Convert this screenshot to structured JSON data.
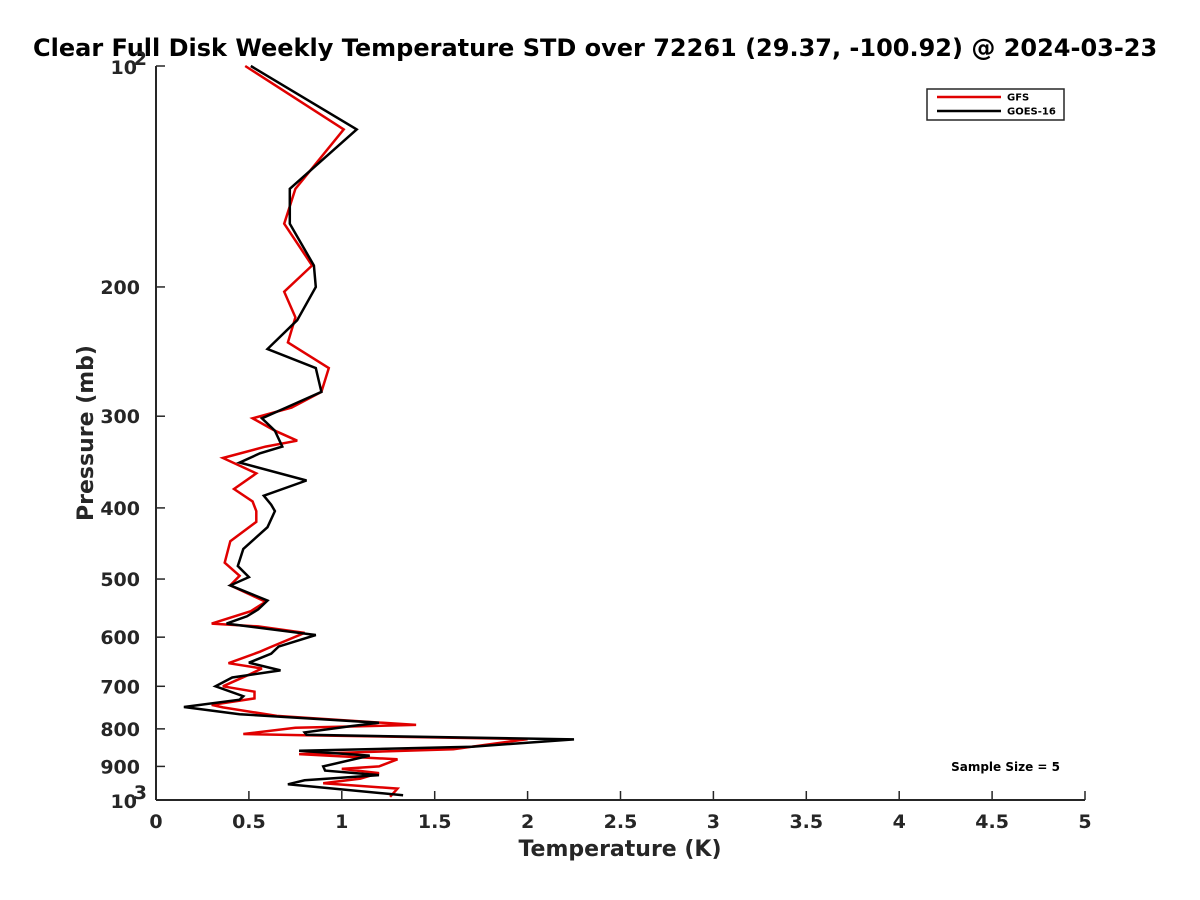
{
  "chart_data": {
    "type": "line",
    "title": "Clear Full Disk Weekly Temperature STD over 72261 (29.37, -100.92) @ 2024-03-23",
    "xlabel": "Temperature (K)",
    "ylabel": "Pressure (mb)",
    "xlim": [
      0,
      5
    ],
    "ylim": [
      100,
      1000
    ],
    "y_scale": "log",
    "y_reversed": true,
    "x_ticks": [
      "0",
      "0.5",
      "1",
      "1.5",
      "2",
      "2.5",
      "3",
      "3.5",
      "4",
      "4.5",
      "5"
    ],
    "y_ticks": [
      {
        "value": 100,
        "label": "10",
        "sup": "2"
      },
      {
        "value": 200,
        "label": "200",
        "sup": ""
      },
      {
        "value": 300,
        "label": "300",
        "sup": ""
      },
      {
        "value": 400,
        "label": "400",
        "sup": ""
      },
      {
        "value": 500,
        "label": "500",
        "sup": ""
      },
      {
        "value": 600,
        "label": "600",
        "sup": ""
      },
      {
        "value": 700,
        "label": "700",
        "sup": ""
      },
      {
        "value": 800,
        "label": "800",
        "sup": ""
      },
      {
        "value": 900,
        "label": "900",
        "sup": ""
      },
      {
        "value": 1000,
        "label": "10",
        "sup": "3"
      }
    ],
    "grid": false,
    "legend_position": "top-right",
    "series": [
      {
        "name": "GFS",
        "color": "#e00000",
        "points": [
          [
            0.48,
            100
          ],
          [
            1.01,
            122
          ],
          [
            0.75,
            147
          ],
          [
            0.69,
            164
          ],
          [
            0.84,
            187
          ],
          [
            0.69,
            203
          ],
          [
            0.75,
            220
          ],
          [
            0.71,
            238
          ],
          [
            0.93,
            258
          ],
          [
            0.89,
            278
          ],
          [
            0.73,
            292
          ],
          [
            0.52,
            302
          ],
          [
            0.64,
            314
          ],
          [
            0.76,
            324
          ],
          [
            0.59,
            330
          ],
          [
            0.36,
            342
          ],
          [
            0.54,
            359
          ],
          [
            0.42,
            377
          ],
          [
            0.52,
            392
          ],
          [
            0.54,
            404
          ],
          [
            0.54,
            418
          ],
          [
            0.4,
            444
          ],
          [
            0.37,
            475
          ],
          [
            0.45,
            495
          ],
          [
            0.4,
            510
          ],
          [
            0.59,
            537
          ],
          [
            0.51,
            553
          ],
          [
            0.3,
            575
          ],
          [
            0.55,
            580
          ],
          [
            0.8,
            592
          ],
          [
            0.61,
            620
          ],
          [
            0.56,
            628
          ],
          [
            0.39,
            651
          ],
          [
            0.57,
            662
          ],
          [
            0.5,
            675
          ],
          [
            0.36,
            700
          ],
          [
            0.53,
            712
          ],
          [
            0.53,
            727
          ],
          [
            0.3,
            742
          ],
          [
            0.36,
            748
          ],
          [
            0.65,
            768
          ],
          [
            1.4,
            790
          ],
          [
            0.75,
            797
          ],
          [
            0.47,
            813
          ],
          [
            0.8,
            816
          ],
          [
            2.0,
            826
          ],
          [
            1.6,
            853
          ],
          [
            0.77,
            866
          ],
          [
            1.3,
            880
          ],
          [
            1.2,
            900
          ],
          [
            1.0,
            907
          ],
          [
            1.2,
            919
          ],
          [
            1.1,
            935
          ],
          [
            0.9,
            949
          ],
          [
            1.3,
            965
          ],
          [
            1.26,
            990
          ]
        ]
      },
      {
        "name": "GOES-16",
        "color": "#000000",
        "points": [
          [
            0.51,
            100
          ],
          [
            1.08,
            122
          ],
          [
            0.72,
            147
          ],
          [
            0.72,
            164
          ],
          [
            0.85,
            187
          ],
          [
            0.86,
            200
          ],
          [
            0.76,
            222
          ],
          [
            0.6,
            243
          ],
          [
            0.86,
            258
          ],
          [
            0.89,
            278
          ],
          [
            0.7,
            292
          ],
          [
            0.57,
            302
          ],
          [
            0.64,
            314
          ],
          [
            0.68,
            330
          ],
          [
            0.56,
            337
          ],
          [
            0.45,
            347
          ],
          [
            0.81,
            367
          ],
          [
            0.58,
            385
          ],
          [
            0.62,
            396
          ],
          [
            0.64,
            404
          ],
          [
            0.6,
            425
          ],
          [
            0.47,
            455
          ],
          [
            0.44,
            480
          ],
          [
            0.5,
            497
          ],
          [
            0.4,
            510
          ],
          [
            0.6,
            535
          ],
          [
            0.55,
            550
          ],
          [
            0.49,
            562
          ],
          [
            0.38,
            575
          ],
          [
            0.86,
            596
          ],
          [
            0.66,
            618
          ],
          [
            0.62,
            632
          ],
          [
            0.5,
            650
          ],
          [
            0.67,
            666
          ],
          [
            0.41,
            681
          ],
          [
            0.32,
            700
          ],
          [
            0.47,
            722
          ],
          [
            0.45,
            730
          ],
          [
            0.15,
            747
          ],
          [
            0.45,
            764
          ],
          [
            1.2,
            785
          ],
          [
            1.05,
            793
          ],
          [
            0.8,
            809
          ],
          [
            0.81,
            815
          ],
          [
            2.25,
            827
          ],
          [
            1.7,
            846
          ],
          [
            0.77,
            857
          ],
          [
            1.15,
            870
          ],
          [
            0.9,
            900
          ],
          [
            0.91,
            912
          ],
          [
            1.2,
            925
          ],
          [
            0.8,
            940
          ],
          [
            0.71,
            952
          ],
          [
            1.33,
            985
          ]
        ]
      }
    ],
    "annotation": "Sample Size = 5"
  }
}
